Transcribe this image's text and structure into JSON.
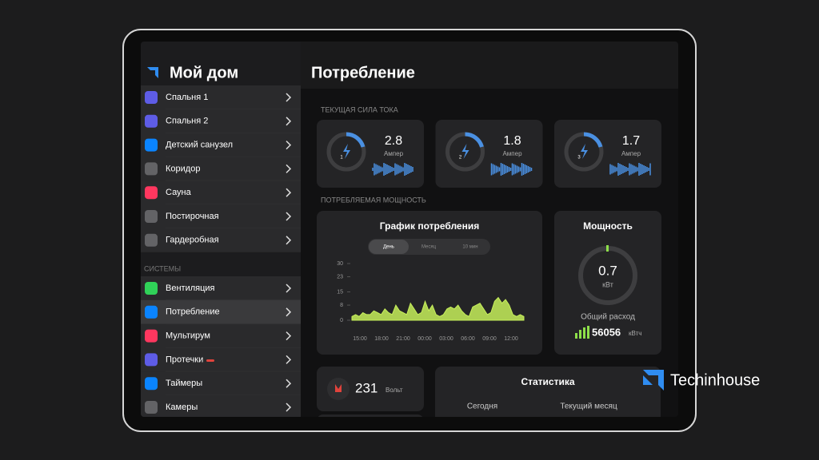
{
  "sidebar": {
    "title": "Мой дом",
    "rooms": [
      "Спальня 1",
      "Спальня 2",
      "Детский санузел",
      "Коридор",
      "Сауна",
      "Постирочная",
      "Гардеробная"
    ],
    "section": "СИСТЕМЫ",
    "systems": [
      "Вентиляция",
      "Потребление",
      "Мультирум",
      "Протечки",
      "Таймеры",
      "Камеры"
    ]
  },
  "main": {
    "title": "Потребление",
    "current_label": "ТЕКУЩАЯ СИЛА ТОКА",
    "phases": [
      {
        "phase": "1",
        "value": 2.8,
        "unit": "Ампер"
      },
      {
        "phase": "2",
        "value": 1.8,
        "unit": "Ампер"
      },
      {
        "phase": "3",
        "value": 1.7,
        "unit": "Ампер"
      }
    ],
    "power_label": "ПОТРЕБЛЯЕМАЯ МОЩНОСТЬ",
    "chart": {
      "title": "График потребления",
      "tabs": [
        "День",
        "Месяц",
        "10 мин"
      ],
      "ylim": [
        0,
        30
      ],
      "yticks": [
        0,
        8,
        15,
        23,
        30
      ],
      "xticks": [
        "15:00",
        "18:00",
        "21:00",
        "00:00",
        "03:00",
        "06:00",
        "09:00",
        "12:00"
      ],
      "values": [
        2,
        3,
        2,
        4,
        3,
        3,
        5,
        4,
        3,
        6,
        4,
        3,
        8,
        5,
        4,
        3,
        9,
        6,
        3,
        4,
        10,
        5,
        8,
        3,
        2,
        3,
        6,
        7,
        6,
        8,
        5,
        3,
        2,
        7,
        8,
        9,
        6,
        3,
        4,
        10,
        12,
        9,
        11,
        8,
        3,
        2,
        3,
        2
      ],
      "color": "#c6ef5a"
    },
    "power": {
      "title": "Мощность",
      "value": 0.7,
      "unit": "кВт",
      "total_label": "Общий расход",
      "total": 56056,
      "total_unit": "кВтч"
    },
    "voltage": {
      "value": 231,
      "unit": "Вольт"
    },
    "stats": {
      "title": "Статистика",
      "columns": [
        "Сегодня",
        "Текущий месяц"
      ]
    }
  },
  "watermark": "Techinhouse"
}
